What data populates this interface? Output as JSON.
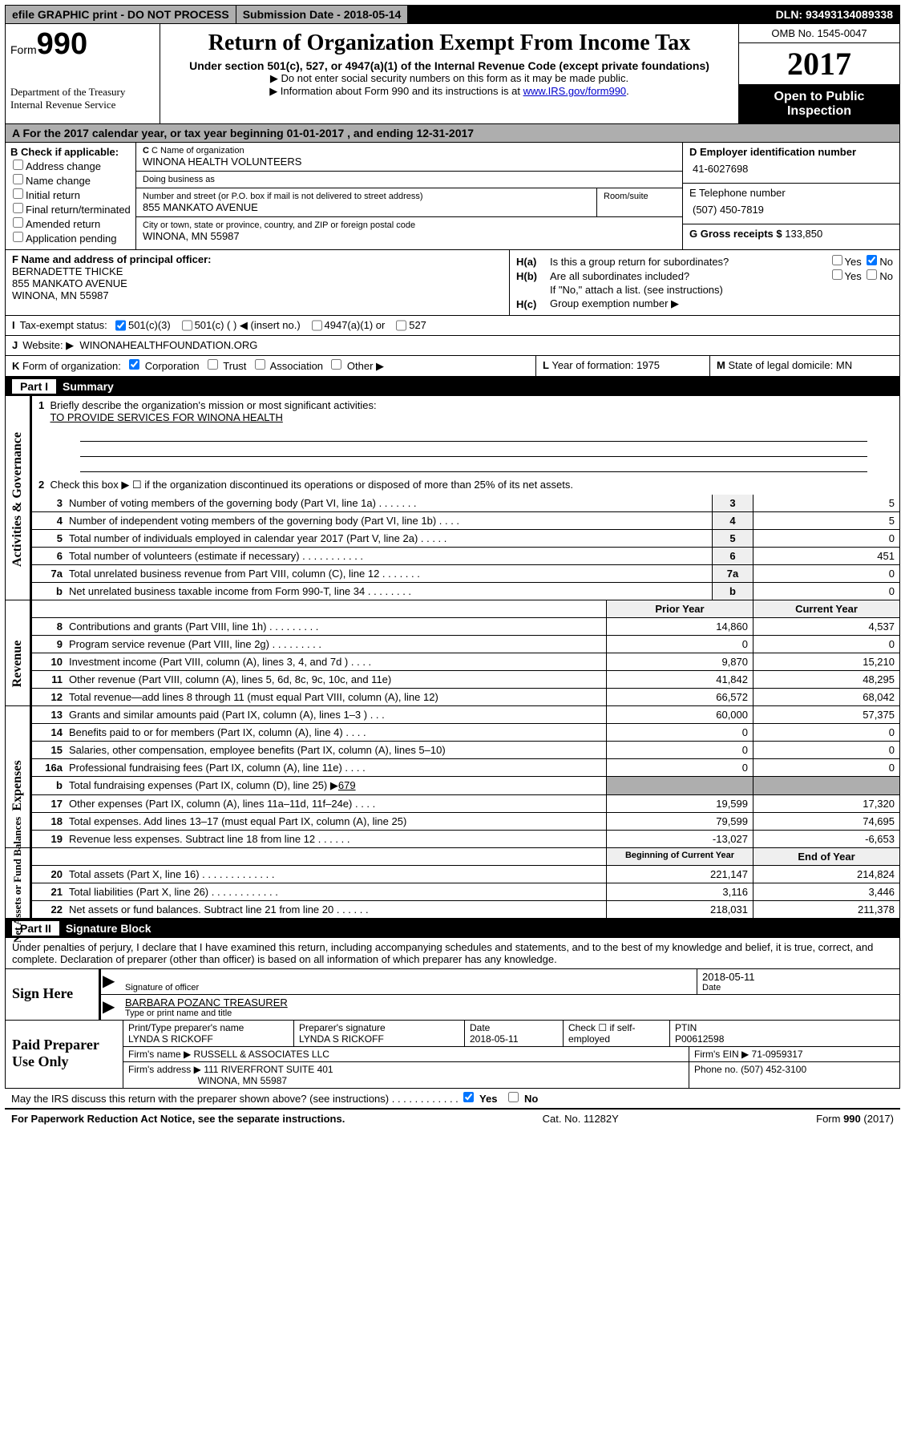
{
  "topbar": {
    "efile": "efile GRAPHIC print - DO NOT PROCESS",
    "sub": "Submission Date - 2018-05-14",
    "dln": "DLN: 93493134089338"
  },
  "header": {
    "form_label": "Form",
    "form_no": "990",
    "dept1": "Department of the Treasury",
    "dept2": "Internal Revenue Service",
    "title": "Return of Organization Exempt From Income Tax",
    "sub1": "Under section 501(c), 527, or 4947(a)(1) of the Internal Revenue Code (except private foundations)",
    "arrow1": "▶ Do not enter social security numbers on this form as it may be made public.",
    "arrow2_a": "▶ Information about Form 990 and its instructions is at ",
    "arrow2_link": "www.IRS.gov/form990",
    "omb": "OMB No. 1545-0047",
    "year": "2017",
    "open": "Open to Public Inspection"
  },
  "a": {
    "text": "A  For the 2017 calendar year, or tax year beginning 01-01-2017   , and ending 12-31-2017"
  },
  "b": {
    "hdr": "B Check if applicable:",
    "opts": [
      "Address change",
      "Name change",
      "Initial return",
      "Final return/terminated",
      "Amended return",
      "Application pending"
    ]
  },
  "c": {
    "name_lbl": "C Name of organization",
    "name": "WINONA HEALTH VOLUNTEERS",
    "dba_lbl": "Doing business as",
    "dba": "",
    "addr_lbl": "Number and street (or P.O. box if mail is not delivered to street address)",
    "addr": "855 MANKATO AVENUE",
    "room_lbl": "Room/suite",
    "city_lbl": "City or town, state or province, country, and ZIP or foreign postal code",
    "city": "WINONA, MN  55987"
  },
  "d": {
    "lbl": "D Employer identification number",
    "val": "41-6027698"
  },
  "e": {
    "lbl": "E Telephone number",
    "val": "(507) 450-7819"
  },
  "g": {
    "lbl": "G Gross receipts $",
    "val": "133,850"
  },
  "f": {
    "lbl": "F Name and address of principal officer:",
    "name": "BERNADETTE THICKE",
    "addr1": "855 MANKATO AVENUE",
    "addr2": "WINONA, MN  55987"
  },
  "h": {
    "a_lbl": "H(a)",
    "a_txt": "Is this a group return for subordinates?",
    "yes": "Yes",
    "no": "No",
    "b_lbl": "H(b)",
    "b_txt": "Are all subordinates included?",
    "b_note": "If \"No,\" attach a list. (see instructions)",
    "c_lbl": "H(c)",
    "c_txt": "Group exemption number ▶"
  },
  "i": {
    "lbl": "I",
    "txt": "Tax-exempt status:",
    "o1": "501(c)(3)",
    "o2": "501(c) (  ) ◀ (insert no.)",
    "o3": "4947(a)(1) or",
    "o4": "527"
  },
  "j": {
    "lbl": "J",
    "txt": "Website: ▶",
    "val": "WINONAHEALTHFOUNDATION.ORG"
  },
  "k": {
    "lbl": "K",
    "txt": "Form of organization:",
    "o1": "Corporation",
    "o2": "Trust",
    "o3": "Association",
    "o4": "Other ▶"
  },
  "l": {
    "lbl": "L",
    "txt": "Year of formation:",
    "val": "1975"
  },
  "m": {
    "lbl": "M",
    "txt": "State of legal domicile:",
    "val": "MN"
  },
  "part1": {
    "label": "Part I",
    "title": "Summary"
  },
  "sideA": "Activities & Governance",
  "sideR": "Revenue",
  "sideE": "Expenses",
  "sideN": "Net Assets or Fund Balances",
  "p1": {
    "l1": "Briefly describe the organization's mission or most significant activities:",
    "l1v": "TO PROVIDE SERVICES FOR WINONA HEALTH",
    "l2": "Check this box ▶ ☐ if the organization discontinued its operations or disposed of more than 25% of its net assets.",
    "rows": [
      {
        "n": "3",
        "d": "Number of voting members of the governing body (Part VI, line 1a)  .   .   .   .   .   .   .",
        "v": "5"
      },
      {
        "n": "4",
        "d": "Number of independent voting members of the governing body (Part VI, line 1b)   .   .   .   .",
        "v": "5"
      },
      {
        "n": "5",
        "d": "Total number of individuals employed in calendar year 2017 (Part V, line 2a)   .   .   .   .   .",
        "v": "0"
      },
      {
        "n": "6",
        "d": "Total number of volunteers (estimate if necessary)   .   .   .   .   .   .   .   .   .   .   .",
        "v": "451"
      },
      {
        "n": "7a",
        "d": "Total unrelated business revenue from Part VIII, column (C), line 12   .   .   .   .   .   .   .",
        "v": "0"
      },
      {
        "n": "  b",
        "d": "Net unrelated business taxable income from Form 990-T, line 34   .   .   .   .   .   .   .   .",
        "v": "0"
      }
    ],
    "col_py": "Prior Year",
    "col_cy": "Current Year",
    "rev": [
      {
        "n": "8",
        "d": "Contributions and grants (Part VIII, line 1h)   .   .   .   .   .   .   .   .   .",
        "p": "14,860",
        "c": "4,537"
      },
      {
        "n": "9",
        "d": "Program service revenue (Part VIII, line 2g)   .   .   .   .   .   .   .   .   .",
        "p": "0",
        "c": "0"
      },
      {
        "n": "10",
        "d": "Investment income (Part VIII, column (A), lines 3, 4, and 7d )   .   .   .   .",
        "p": "9,870",
        "c": "15,210"
      },
      {
        "n": "11",
        "d": "Other revenue (Part VIII, column (A), lines 5, 6d, 8c, 9c, 10c, and 11e)",
        "p": "41,842",
        "c": "48,295"
      },
      {
        "n": "12",
        "d": "Total revenue—add lines 8 through 11 (must equal Part VIII, column (A), line 12)",
        "p": "66,572",
        "c": "68,042"
      }
    ],
    "exp": [
      {
        "n": "13",
        "d": "Grants and similar amounts paid (Part IX, column (A), lines 1–3 )   .   .   .",
        "p": "60,000",
        "c": "57,375"
      },
      {
        "n": "14",
        "d": "Benefits paid to or for members (Part IX, column (A), line 4)   .   .   .   .",
        "p": "0",
        "c": "0"
      },
      {
        "n": "15",
        "d": "Salaries, other compensation, employee benefits (Part IX, column (A), lines 5–10)",
        "p": "0",
        "c": "0"
      },
      {
        "n": "16a",
        "d": "Professional fundraising fees (Part IX, column (A), line 11e)   .   .   .   .",
        "p": "0",
        "c": "0"
      }
    ],
    "l16b_n": "  b",
    "l16b": "Total fundraising expenses (Part IX, column (D), line 25) ▶",
    "l16b_v": "679",
    "exp2": [
      {
        "n": "17",
        "d": "Other expenses (Part IX, column (A), lines 11a–11d, 11f–24e)   .   .   .   .",
        "p": "19,599",
        "c": "17,320"
      },
      {
        "n": "18",
        "d": "Total expenses. Add lines 13–17 (must equal Part IX, column (A), line 25)",
        "p": "79,599",
        "c": "74,695"
      },
      {
        "n": "19",
        "d": "Revenue less expenses. Subtract line 18 from line 12   .   .   .   .   .   .",
        "p": "-13,027",
        "c": "-6,653"
      }
    ],
    "col_boy": "Beginning of Current Year",
    "col_eoy": "End of Year",
    "net": [
      {
        "n": "20",
        "d": "Total assets (Part X, line 16)   .   .   .   .   .   .   .   .   .   .   .   .   .",
        "p": "221,147",
        "c": "214,824"
      },
      {
        "n": "21",
        "d": "Total liabilities (Part X, line 26)   .   .   .   .   .   .   .   .   .   .   .   .",
        "p": "3,116",
        "c": "3,446"
      },
      {
        "n": "22",
        "d": "Net assets or fund balances. Subtract line 21 from line 20 .   .   .   .   .   .",
        "p": "218,031",
        "c": "211,378"
      }
    ]
  },
  "part2": {
    "label": "Part II",
    "title": "Signature Block"
  },
  "sig": {
    "decl": "Under penalties of perjury, I declare that I have examined this return, including accompanying schedules and statements, and to the best of my knowledge and belief, it is true, correct, and complete. Declaration of preparer (other than officer) is based on all information of which preparer has any knowledge.",
    "sign_here": "Sign Here",
    "sig_lbl": "Signature of officer",
    "date_lbl": "Date",
    "date_val": "2018-05-11",
    "name": "BARBARA POZANC TREASURER",
    "name_lbl": "Type or print name and title",
    "paid": "Paid Preparer Use Only",
    "p_name_lbl": "Print/Type preparer's name",
    "p_name": "LYNDA S RICKOFF",
    "p_sig_lbl": "Preparer's signature",
    "p_sig": "LYNDA S RICKOFF",
    "p_date_lbl": "Date",
    "p_date": "2018-05-11",
    "p_check": "Check ☐ if self-employed",
    "p_ptin_lbl": "PTIN",
    "p_ptin": "P00612598",
    "firm_name_lbl": "Firm's name    ▶",
    "firm_name": "RUSSELL & ASSOCIATES LLC",
    "firm_ein_lbl": "Firm's EIN ▶",
    "firm_ein": "71-0959317",
    "firm_addr_lbl": "Firm's address ▶",
    "firm_addr1": "111 RIVERFRONT SUITE 401",
    "firm_addr2": "WINONA, MN  55987",
    "phone_lbl": "Phone no.",
    "phone": "(507) 452-3100"
  },
  "foot": {
    "q": "May the IRS discuss this return with the preparer shown above? (see instructions)   .   .   .   .   .   .   .   .   .   .   .   .",
    "yes": "Yes",
    "no": "No",
    "pra": "For Paperwork Reduction Act Notice, see the separate instructions.",
    "cat": "Cat. No. 11282Y",
    "form": "Form 990 (2017)"
  }
}
